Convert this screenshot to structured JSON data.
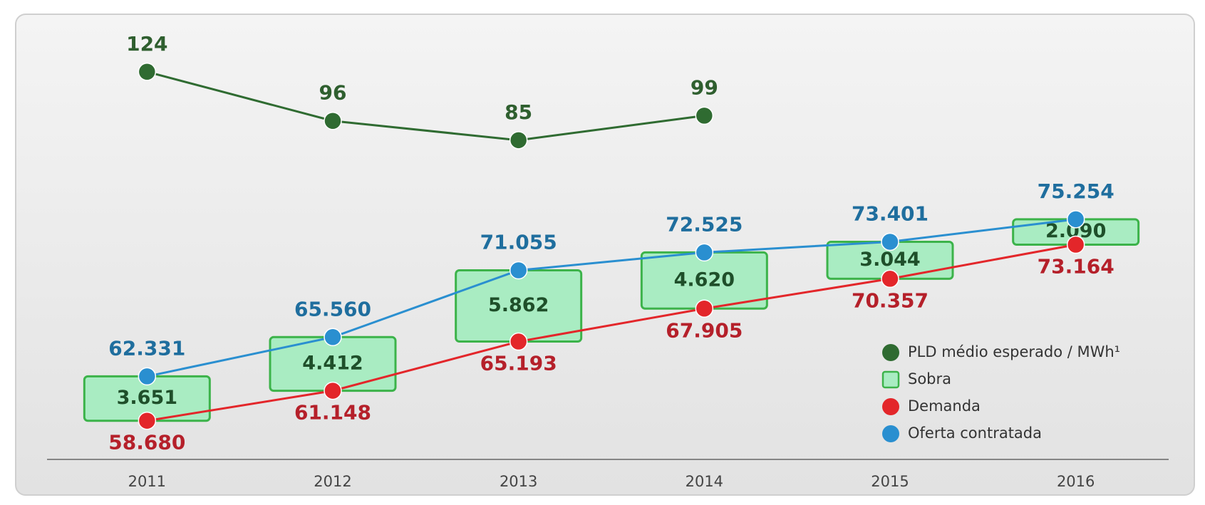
{
  "chart_data": {
    "type": "line",
    "categories": [
      "2011",
      "2012",
      "2013",
      "2014",
      "2015",
      "2016"
    ],
    "series": [
      {
        "name": "PLD médio esperado / MWh¹",
        "color": "#2f6b31",
        "axis": "y2",
        "values": [
          124,
          96,
          85,
          99,
          null,
          null
        ]
      },
      {
        "name": "Sobra",
        "color": "#3cb34a",
        "mark": "box",
        "values": [
          3651,
          4412,
          5862,
          4620,
          3044,
          2090
        ],
        "value_labels": [
          "3.651",
          "4.412",
          "5.862",
          "4.620",
          "3.044",
          "2.090"
        ]
      },
      {
        "name": "Demanda",
        "color": "#e3262a",
        "values": [
          58680,
          61148,
          65193,
          67905,
          70357,
          73164
        ],
        "value_labels": [
          "58.680",
          "61.148",
          "65.193",
          "67.905",
          "70.357",
          "73.164"
        ]
      },
      {
        "name": "Oferta contratada",
        "color": "#2a8fd0",
        "values": [
          62331,
          65560,
          71055,
          72525,
          73401,
          75254
        ],
        "value_labels": [
          "62.331",
          "65.560",
          "71.055",
          "72.525",
          "73.401",
          "75.254"
        ]
      }
    ],
    "ylim": [
      55500,
      92000
    ],
    "y2lim": [
      -97,
      156
    ],
    "grid": false,
    "legend": "lower right"
  }
}
